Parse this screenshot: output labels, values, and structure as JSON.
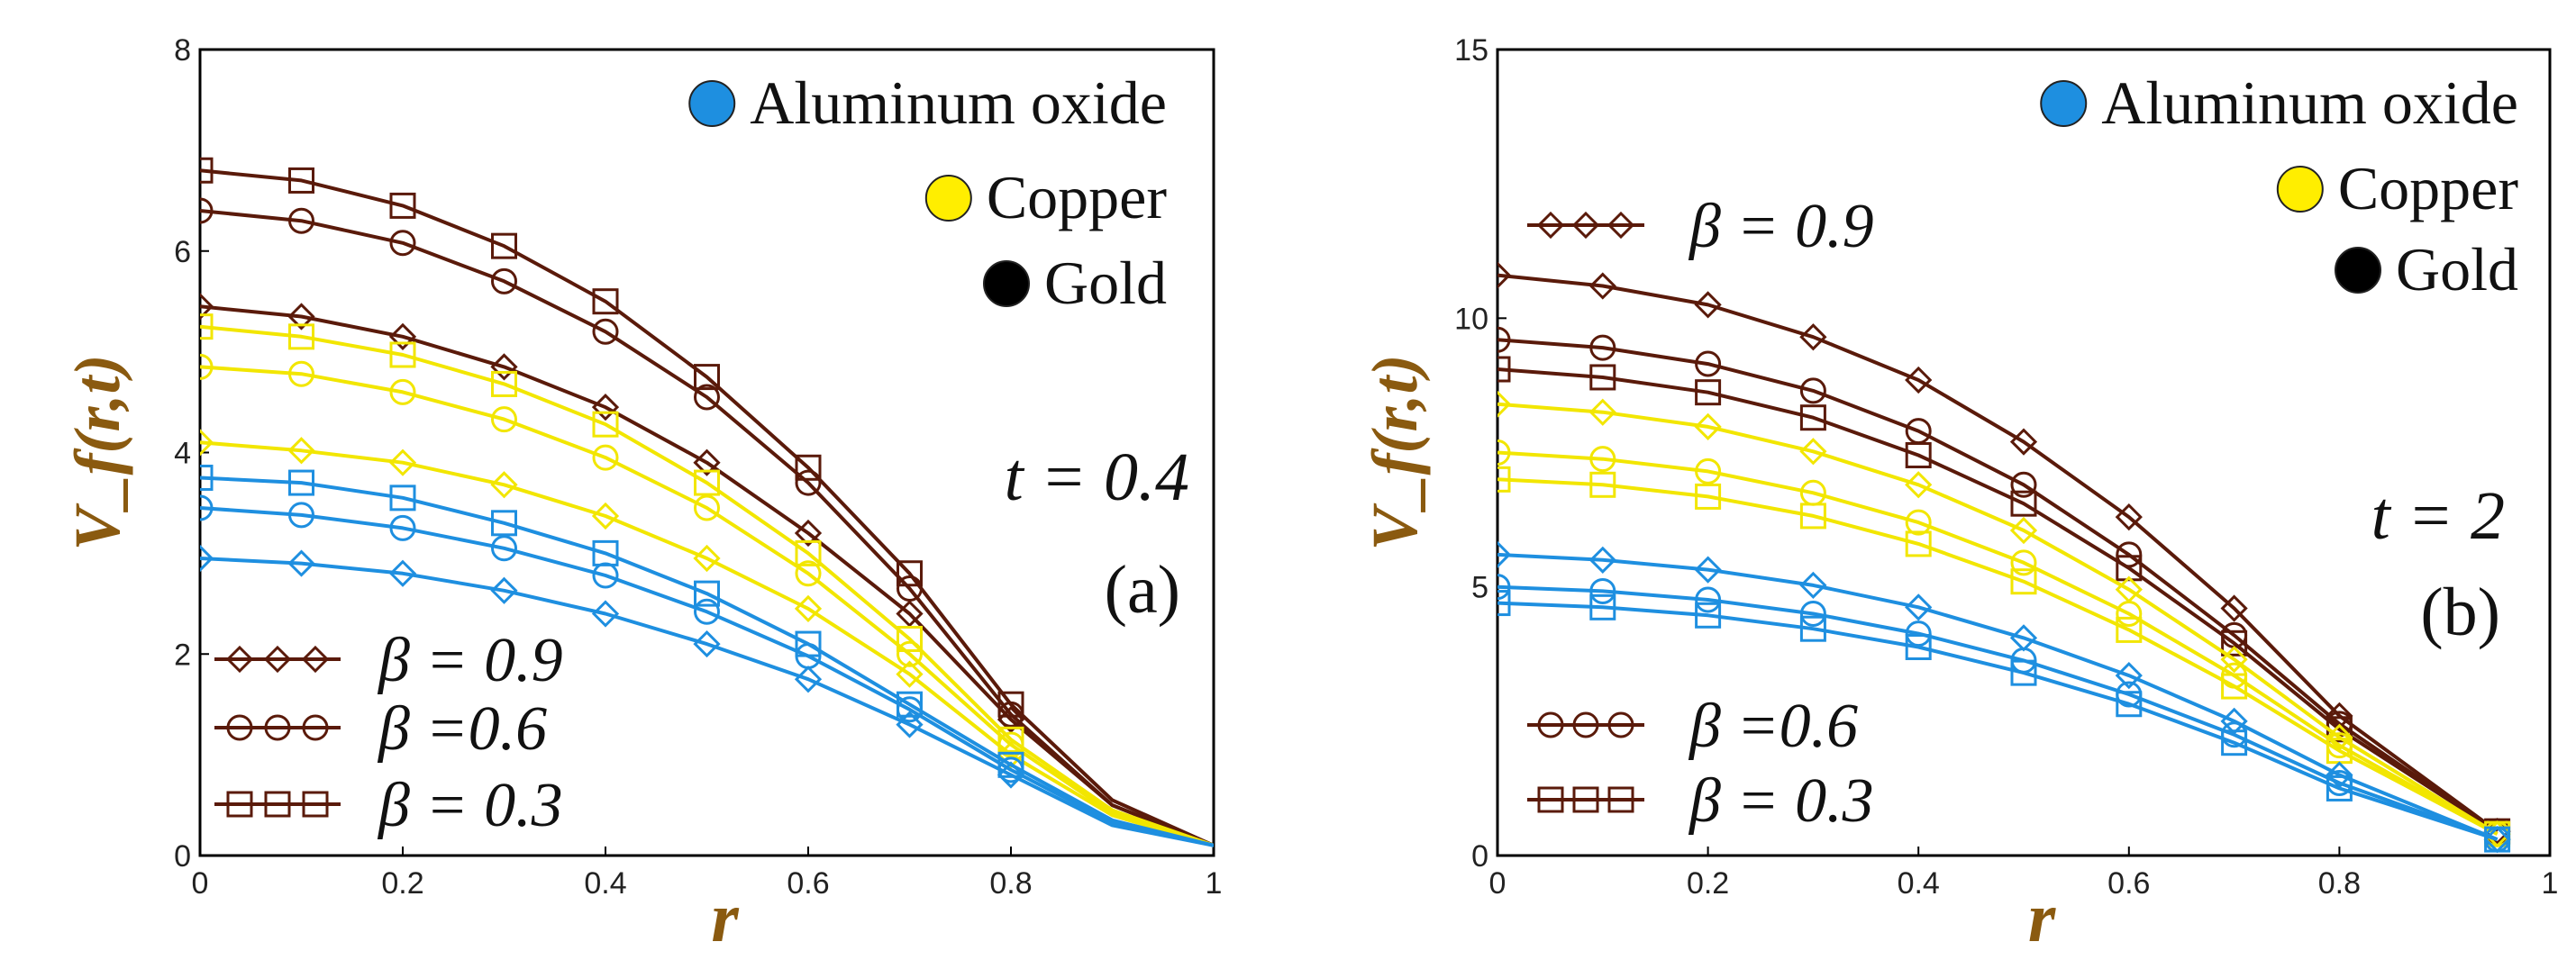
{
  "chart_data": [
    {
      "type": "line",
      "panel_label": "(a)",
      "time_annotation": "t = 0.4",
      "xlabel": "r",
      "ylabel": "V_f(r,t)",
      "xlim": [
        0,
        1
      ],
      "ylim": [
        0,
        8
      ],
      "xticks": [
        "0",
        "0.2",
        "0.4",
        "0.6",
        "0.8",
        "1"
      ],
      "yticks": [
        "0",
        "2",
        "4",
        "6",
        "8"
      ],
      "materials_legend": [
        {
          "name": "Aluminum oxide",
          "color": "#1e8fe0"
        },
        {
          "name": "Copper",
          "color": "#ffee00"
        },
        {
          "name": "Gold",
          "color": "#000000"
        }
      ],
      "beta_legend": [
        {
          "label": "β = 0.9",
          "marker": "diamond"
        },
        {
          "label": "β =0.6",
          "marker": "circle"
        },
        {
          "label": "β = 0.3",
          "marker": "square"
        }
      ],
      "x": [
        0,
        0.1,
        0.2,
        0.3,
        0.4,
        0.5,
        0.6,
        0.7,
        0.8,
        0.9,
        1.0
      ],
      "series": [
        {
          "name": "Gold β=0.3",
          "material": "Gold",
          "marker": "square",
          "color": "#5a1a0a",
          "marker_x": [
            0,
            0.1,
            0.2,
            0.3,
            0.4,
            0.5,
            0.6,
            0.7,
            0.8
          ],
          "values": [
            6.8,
            6.7,
            6.45,
            6.05,
            5.5,
            4.75,
            3.85,
            2.8,
            1.5,
            0.55,
            0.1
          ]
        },
        {
          "name": "Gold β=0.6",
          "material": "Gold",
          "marker": "circle",
          "color": "#5a1a0a",
          "marker_x": [
            0,
            0.1,
            0.2,
            0.3,
            0.4,
            0.5,
            0.6,
            0.7,
            0.8
          ],
          "values": [
            6.4,
            6.3,
            6.08,
            5.7,
            5.2,
            4.55,
            3.7,
            2.65,
            1.4,
            0.5,
            0.1
          ]
        },
        {
          "name": "Gold β=0.9",
          "material": "Gold",
          "marker": "diamond",
          "color": "#5a1a0a",
          "marker_x": [
            0,
            0.1,
            0.2,
            0.3,
            0.4,
            0.5,
            0.6,
            0.7,
            0.8
          ],
          "values": [
            5.45,
            5.35,
            5.15,
            4.85,
            4.45,
            3.9,
            3.2,
            2.4,
            1.35,
            0.5,
            0.1
          ]
        },
        {
          "name": "Copper β=0.3",
          "material": "Copper",
          "marker": "square",
          "color": "#f2e600",
          "marker_x": [
            0,
            0.1,
            0.2,
            0.3,
            0.4,
            0.5,
            0.6,
            0.7,
            0.8
          ],
          "values": [
            5.25,
            5.15,
            4.97,
            4.68,
            4.28,
            3.7,
            3.0,
            2.15,
            1.15,
            0.45,
            0.1
          ]
        },
        {
          "name": "Copper β=0.6",
          "material": "Copper",
          "marker": "circle",
          "color": "#f2e600",
          "marker_x": [
            0,
            0.1,
            0.2,
            0.3,
            0.4,
            0.5,
            0.6,
            0.7,
            0.8
          ],
          "values": [
            4.85,
            4.78,
            4.6,
            4.33,
            3.95,
            3.45,
            2.8,
            2.0,
            1.1,
            0.42,
            0.1
          ]
        },
        {
          "name": "Copper β=0.9",
          "material": "Copper",
          "marker": "diamond",
          "color": "#f2e600",
          "marker_x": [
            0,
            0.1,
            0.2,
            0.3,
            0.4,
            0.5,
            0.6,
            0.7,
            0.8
          ],
          "values": [
            4.1,
            4.02,
            3.9,
            3.68,
            3.37,
            2.95,
            2.45,
            1.8,
            1.0,
            0.4,
            0.1
          ]
        },
        {
          "name": "Aluminum oxide β=0.3",
          "material": "Aluminum oxide",
          "marker": "square",
          "color": "#1e8fe0",
          "marker_x": [
            0,
            0.1,
            0.2,
            0.3,
            0.4,
            0.5,
            0.6,
            0.7,
            0.8
          ],
          "values": [
            3.75,
            3.7,
            3.55,
            3.3,
            3.0,
            2.6,
            2.1,
            1.5,
            0.9,
            0.35,
            0.1
          ]
        },
        {
          "name": "Aluminum oxide β=0.6",
          "material": "Aluminum oxide",
          "marker": "circle",
          "color": "#1e8fe0",
          "marker_x": [
            0,
            0.1,
            0.2,
            0.3,
            0.4,
            0.5,
            0.6,
            0.7,
            0.8
          ],
          "values": [
            3.45,
            3.38,
            3.25,
            3.05,
            2.78,
            2.42,
            1.98,
            1.45,
            0.85,
            0.33,
            0.1
          ]
        },
        {
          "name": "Aluminum oxide β=0.9",
          "material": "Aluminum oxide",
          "marker": "diamond",
          "color": "#1e8fe0",
          "marker_x": [
            0,
            0.1,
            0.2,
            0.3,
            0.4,
            0.5,
            0.6,
            0.7,
            0.8
          ],
          "values": [
            2.95,
            2.9,
            2.8,
            2.63,
            2.4,
            2.1,
            1.75,
            1.3,
            0.8,
            0.3,
            0.1
          ]
        }
      ]
    },
    {
      "type": "line",
      "panel_label": "(b)",
      "time_annotation": "t = 2",
      "xlabel": "r",
      "ylabel": "V_f(r,t)",
      "xlim": [
        0,
        1
      ],
      "ylim": [
        0,
        15
      ],
      "xticks": [
        "0",
        "0.2",
        "0.4",
        "0.6",
        "0.8",
        "1"
      ],
      "yticks": [
        "0",
        "5",
        "10",
        "15"
      ],
      "materials_legend": [
        {
          "name": "Aluminum oxide",
          "color": "#1e8fe0"
        },
        {
          "name": "Copper",
          "color": "#ffee00"
        },
        {
          "name": "Gold",
          "color": "#000000"
        }
      ],
      "beta_legend": [
        {
          "label": "β = 0.9",
          "marker": "diamond"
        },
        {
          "label": "β =0.6",
          "marker": "circle"
        },
        {
          "label": "β = 0.3",
          "marker": "square"
        }
      ],
      "x": [
        0,
        0.1,
        0.2,
        0.3,
        0.4,
        0.5,
        0.6,
        0.7,
        0.8,
        0.95
      ],
      "series": [
        {
          "name": "Gold β=0.9",
          "material": "Gold",
          "marker": "diamond",
          "color": "#5a1a0a",
          "marker_x": [
            0,
            0.1,
            0.2,
            0.3,
            0.4,
            0.5,
            0.6,
            0.7,
            0.8,
            0.95
          ],
          "values": [
            10.8,
            10.6,
            10.25,
            9.65,
            8.85,
            7.7,
            6.3,
            4.6,
            2.6,
            0.45
          ]
        },
        {
          "name": "Gold β=0.6",
          "material": "Gold",
          "marker": "circle",
          "color": "#5a1a0a",
          "marker_x": [
            0,
            0.1,
            0.2,
            0.3,
            0.4,
            0.5,
            0.6,
            0.7,
            0.8,
            0.95
          ],
          "values": [
            9.6,
            9.45,
            9.15,
            8.65,
            7.9,
            6.9,
            5.6,
            4.1,
            2.45,
            0.45
          ]
        },
        {
          "name": "Gold β=0.3",
          "material": "Gold",
          "marker": "square",
          "color": "#5a1a0a",
          "marker_x": [
            0,
            0.1,
            0.2,
            0.3,
            0.4,
            0.5,
            0.6,
            0.7,
            0.8,
            0.95
          ],
          "values": [
            9.05,
            8.9,
            8.62,
            8.15,
            7.45,
            6.55,
            5.35,
            3.95,
            2.35,
            0.45
          ]
        },
        {
          "name": "Copper β=0.9",
          "material": "Copper",
          "marker": "diamond",
          "color": "#f2e600",
          "marker_x": [
            0,
            0.1,
            0.2,
            0.3,
            0.4,
            0.5,
            0.6,
            0.7,
            0.8,
            0.95
          ],
          "values": [
            8.4,
            8.25,
            7.98,
            7.52,
            6.9,
            6.05,
            4.95,
            3.65,
            2.2,
            0.4
          ]
        },
        {
          "name": "Copper β=0.6",
          "material": "Copper",
          "marker": "circle",
          "color": "#f2e600",
          "marker_x": [
            0,
            0.1,
            0.2,
            0.3,
            0.4,
            0.5,
            0.6,
            0.7,
            0.8,
            0.95
          ],
          "values": [
            7.5,
            7.38,
            7.15,
            6.75,
            6.2,
            5.45,
            4.5,
            3.35,
            2.05,
            0.4
          ]
        },
        {
          "name": "Copper β=0.3",
          "material": "Copper",
          "marker": "square",
          "color": "#f2e600",
          "marker_x": [
            0,
            0.1,
            0.2,
            0.3,
            0.4,
            0.5,
            0.6,
            0.7,
            0.8,
            0.95
          ],
          "values": [
            7.0,
            6.9,
            6.68,
            6.32,
            5.8,
            5.1,
            4.2,
            3.15,
            1.95,
            0.4
          ]
        },
        {
          "name": "Aluminum oxide β=0.9",
          "material": "Aluminum oxide",
          "marker": "diamond",
          "color": "#1e8fe0",
          "marker_x": [
            0,
            0.1,
            0.2,
            0.3,
            0.4,
            0.5,
            0.6,
            0.7,
            0.8,
            0.95
          ],
          "values": [
            5.6,
            5.5,
            5.32,
            5.03,
            4.62,
            4.05,
            3.35,
            2.5,
            1.5,
            0.3
          ]
        },
        {
          "name": "Aluminum oxide β=0.6",
          "material": "Aluminum oxide",
          "marker": "circle",
          "color": "#1e8fe0",
          "marker_x": [
            0,
            0.1,
            0.2,
            0.3,
            0.4,
            0.5,
            0.6,
            0.7,
            0.8,
            0.95
          ],
          "values": [
            5.0,
            4.92,
            4.76,
            4.5,
            4.13,
            3.63,
            3.0,
            2.25,
            1.35,
            0.3
          ]
        },
        {
          "name": "Aluminum oxide β=0.3",
          "material": "Aluminum oxide",
          "marker": "square",
          "color": "#1e8fe0",
          "marker_x": [
            0,
            0.1,
            0.2,
            0.3,
            0.4,
            0.5,
            0.6,
            0.7,
            0.8,
            0.95
          ],
          "values": [
            4.7,
            4.62,
            4.47,
            4.22,
            3.88,
            3.4,
            2.82,
            2.1,
            1.25,
            0.3
          ]
        }
      ]
    }
  ]
}
